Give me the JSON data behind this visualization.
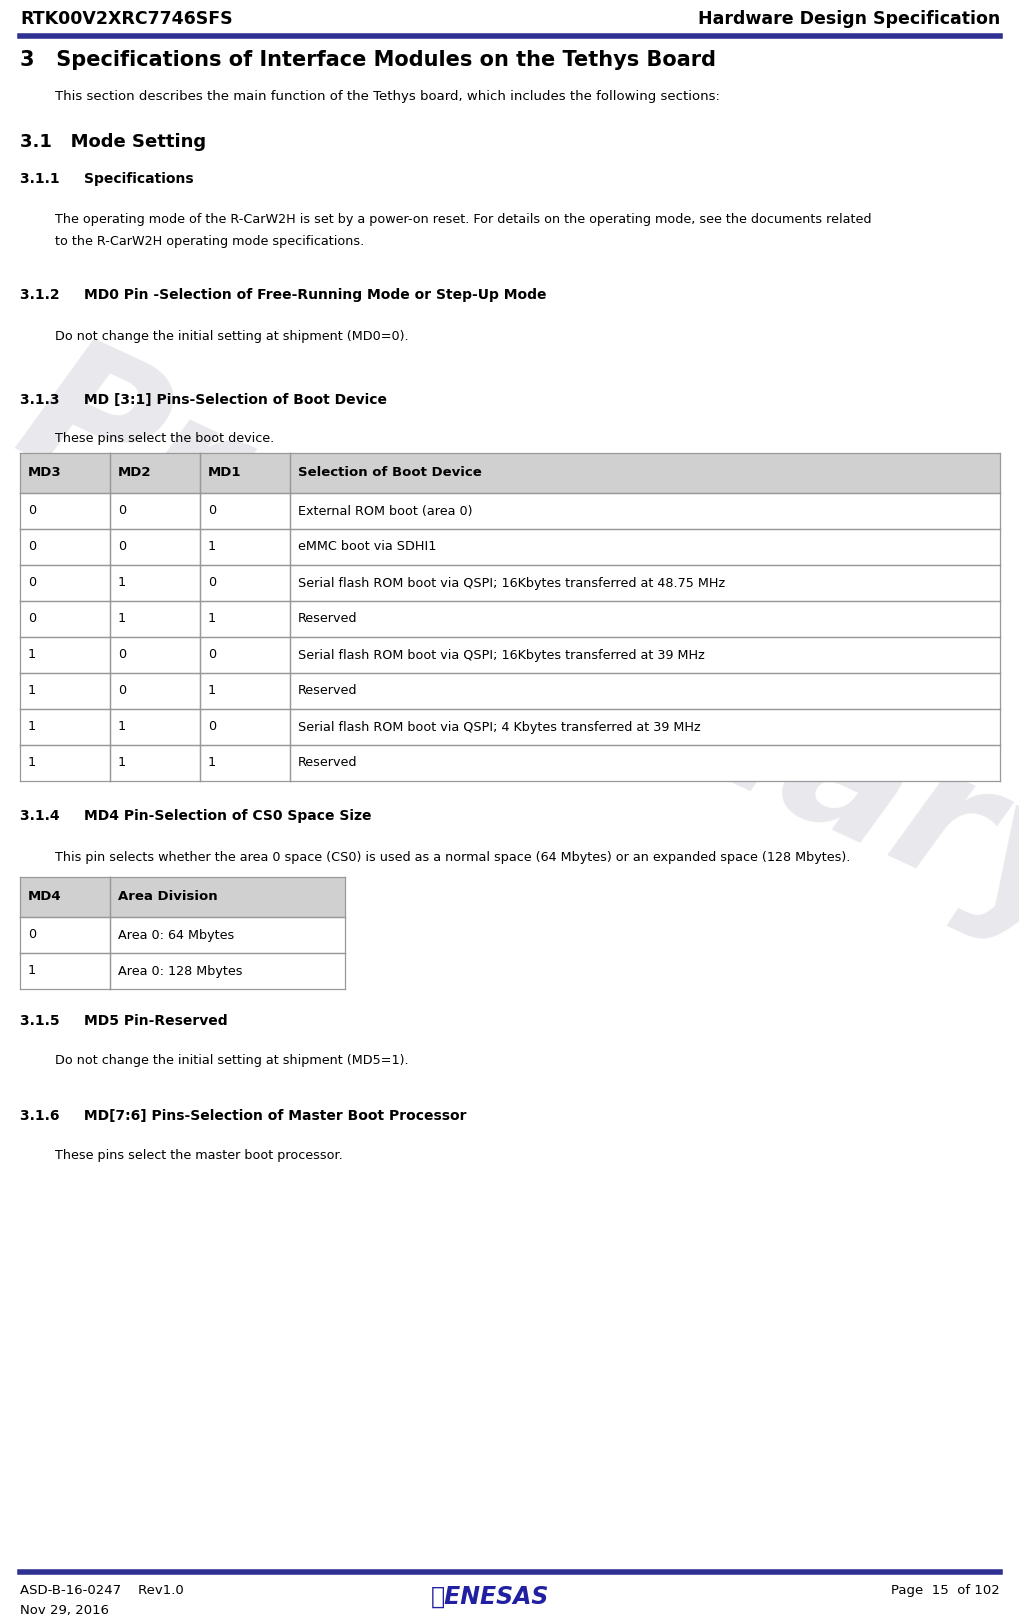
{
  "header_left": "RTK00V2XRC7746SFS",
  "header_right": "Hardware Design Specification",
  "header_line_color": "#2E3192",
  "footer_line_color": "#2E3192",
  "footer_left_line1": "ASD-B-16-0247    Rev1.0",
  "footer_left_line2": "Nov 29, 2016",
  "footer_right": "Page  15  of 102",
  "watermark_text": "Preliminary",
  "watermark_color": "#B0B0C0",
  "watermark_alpha": 0.28,
  "section3_title": "3   Specifications of Interface Modules on the Tethys Board",
  "section3_intro": "This section describes the main function of the Tethys board, which includes the following sections:",
  "section31_title": "3.1   Mode Setting",
  "section311_title": "3.1.1     Specifications",
  "section311_line1": "The operating mode of the R-CarW2H is set by a power-on reset. For details on the operating mode, see the documents related",
  "section311_line2": "to the R-CarW2H operating mode specifications.",
  "section312_title": "3.1.2     MD0 Pin -Selection of Free-Running Mode or Step-Up Mode",
  "section312_body": "Do not change the initial setting at shipment (MD0=0).",
  "section313_title": "3.1.3     MD [3:1] Pins-Selection of Boot Device",
  "section313_intro": "These pins select the boot device.",
  "table1_headers": [
    "MD3",
    "MD2",
    "MD1",
    "Selection of Boot Device"
  ],
  "table1_rows": [
    [
      "0",
      "0",
      "0",
      "External ROM boot (area 0)"
    ],
    [
      "0",
      "0",
      "1",
      "eMMC boot via SDHI1"
    ],
    [
      "0",
      "1",
      "0",
      "Serial flash ROM boot via QSPI; 16Kbytes transferred at 48.75 MHz"
    ],
    [
      "0",
      "1",
      "1",
      "Reserved"
    ],
    [
      "1",
      "0",
      "0",
      "Serial flash ROM boot via QSPI; 16Kbytes transferred at 39 MHz"
    ],
    [
      "1",
      "0",
      "1",
      "Reserved"
    ],
    [
      "1",
      "1",
      "0",
      "Serial flash ROM boot via QSPI; 4 Kbytes transferred at 39 MHz"
    ],
    [
      "1",
      "1",
      "1",
      "Reserved"
    ]
  ],
  "table1_header_bg": "#D0D0D0",
  "table1_row_bg": "#FFFFFF",
  "table1_line_color": "#999999",
  "section314_title": "3.1.4     MD4 Pin-Selection of CS0 Space Size",
  "section314_body": "This pin selects whether the area 0 space (CS0) is used as a normal space (64 Mbytes) or an expanded space (128 Mbytes).",
  "table2_headers": [
    "MD4",
    "Area Division"
  ],
  "table2_rows": [
    [
      "0",
      "Area 0: 64 Mbytes"
    ],
    [
      "1",
      "Area 0: 128 Mbytes"
    ]
  ],
  "section315_title": "3.1.5     MD5 Pin-Reserved",
  "section315_body": "Do not change the initial setting at shipment (MD5=1).",
  "section316_title": "3.1.6     MD[7:6] Pins-Selection of Master Boot Processor",
  "section316_body": "These pins select the master boot processor.",
  "bg_color": "#FFFFFF",
  "text_color": "#000000",
  "renesas_color": "#2020A0"
}
